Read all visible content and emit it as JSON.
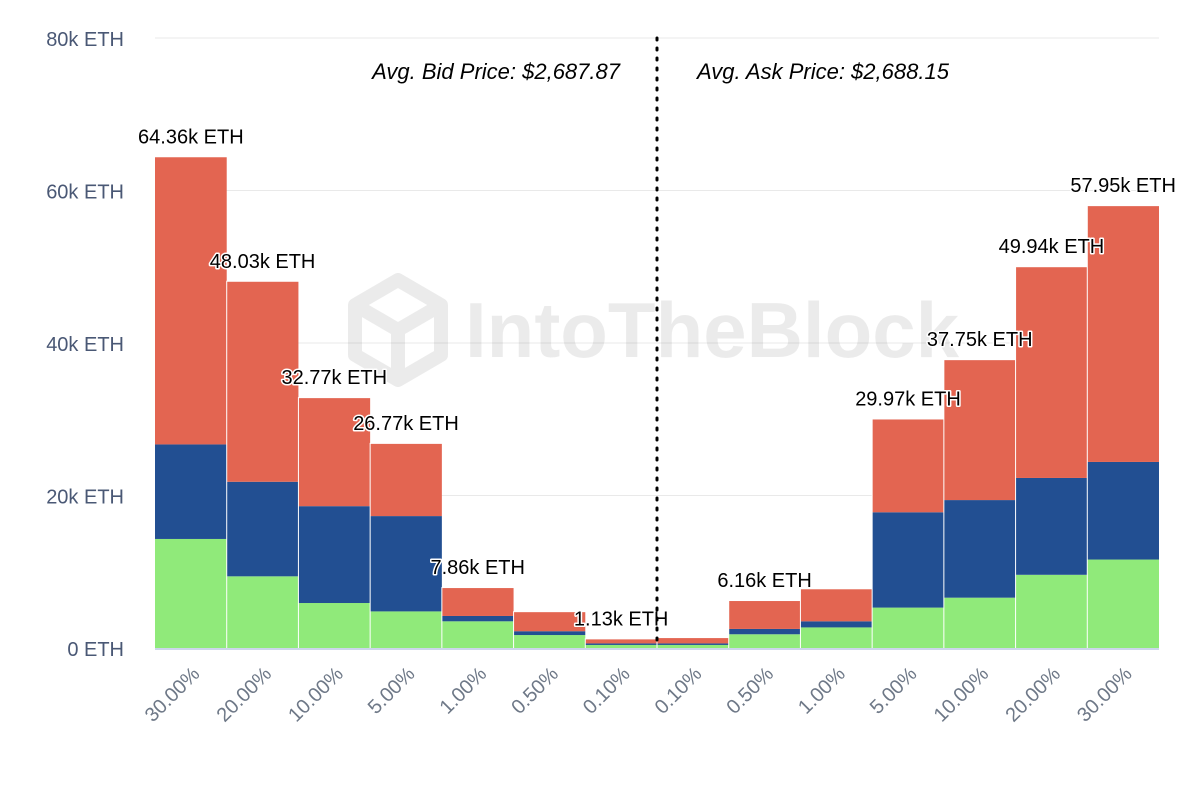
{
  "chart_data": {
    "type": "bar",
    "stacked": true,
    "categories": [
      "30.00%",
      "20.00%",
      "10.00%",
      "5.00%",
      "1.00%",
      "0.50%",
      "0.10%",
      "0.10%",
      "0.50%",
      "1.00%",
      "5.00%",
      "10.00%",
      "20.00%",
      "30.00%"
    ],
    "series": [
      {
        "name": "green",
        "color": "#90ea7a",
        "values": [
          14.3,
          9.4,
          5.9,
          4.8,
          3.5,
          1.7,
          0.4,
          0.4,
          1.8,
          2.7,
          5.3,
          6.6,
          9.6,
          11.6
        ]
      },
      {
        "name": "blue",
        "color": "#224f92",
        "values": [
          12.4,
          12.4,
          12.7,
          12.5,
          0.7,
          0.5,
          0.2,
          0.2,
          0.7,
          0.8,
          12.5,
          12.8,
          12.7,
          12.8
        ]
      },
      {
        "name": "red",
        "color": "#e36551",
        "values": [
          37.66,
          26.23,
          14.17,
          9.47,
          3.66,
          2.5,
          0.53,
          0.7,
          3.66,
          4.2,
          12.17,
          18.35,
          27.64,
          33.55
        ]
      }
    ],
    "totals": [
      64.36,
      48.03,
      32.77,
      26.77,
      7.86,
      4.7,
      1.13,
      1.3,
      6.16,
      7.7,
      29.97,
      37.75,
      49.94,
      57.95
    ],
    "data_labels": [
      "64.36k ETH",
      "48.03k ETH",
      "32.77k ETH",
      "26.77k ETH",
      "7.86k ETH",
      "",
      "1.13k ETH",
      "",
      "6.16k ETH",
      "",
      "29.97k ETH",
      "37.75k ETH",
      "49.94k ETH",
      "57.95k ETH"
    ],
    "y_ticks": [
      0,
      20,
      40,
      60,
      80
    ],
    "y_tick_labels": [
      "0 ETH",
      "20k ETH",
      "40k ETH",
      "60k ETH",
      "80k ETH"
    ],
    "ylim": [
      0,
      80
    ],
    "grid": true,
    "annotations": {
      "bid": "Avg. Bid Price: $2,687.87",
      "ask": "Avg. Ask Price: $2,688.15"
    },
    "watermark": "IntoTheBlock",
    "xlabel": "",
    "ylabel": ""
  }
}
